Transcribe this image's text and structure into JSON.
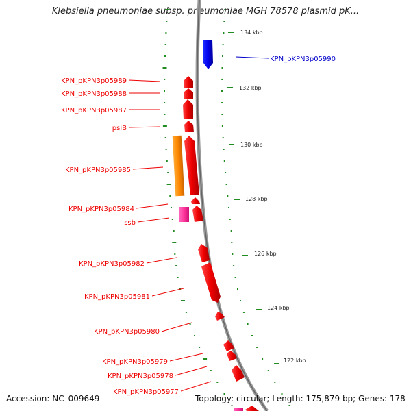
{
  "title": "Klebsiella pneumoniae subsp. pneumoniae MGH 78578 plasmid pK...",
  "footer": {
    "accession": "Accession: NC_009649",
    "summary": "Topology: circular; Length: 175,879 bp; Genes: 178"
  },
  "colors": {
    "reverse_strand_gene": "#ee0000",
    "forward_strand_gene": "#0000dd",
    "orange_feature": "#ff8800",
    "pink_feature": "#ff3399",
    "tick": "#228b22",
    "backbone": "#888888"
  },
  "kbp_ticks": [
    "134 kbp",
    "132 kbp",
    "130 kbp",
    "128 kbp",
    "126 kbp",
    "124 kbp",
    "122 kbp"
  ],
  "forward_labels": [
    "KPN_pKPN3p05990"
  ],
  "reverse_labels": [
    "KPN_pKPN3p05989",
    "KPN_pKPN3p05988",
    "KPN_pKPN3p05987",
    "psiB",
    "KPN_pKPN3p05985",
    "KPN_pKPN3p05984",
    "ssb",
    "KPN_pKPN3p05982",
    "KPN_pKPN3p05981",
    "KPN_pKPN3p05980",
    "KPN_pKPN3p05979",
    "KPN_pKPN3p05978",
    "KPN_pKPN3p05977"
  ]
}
